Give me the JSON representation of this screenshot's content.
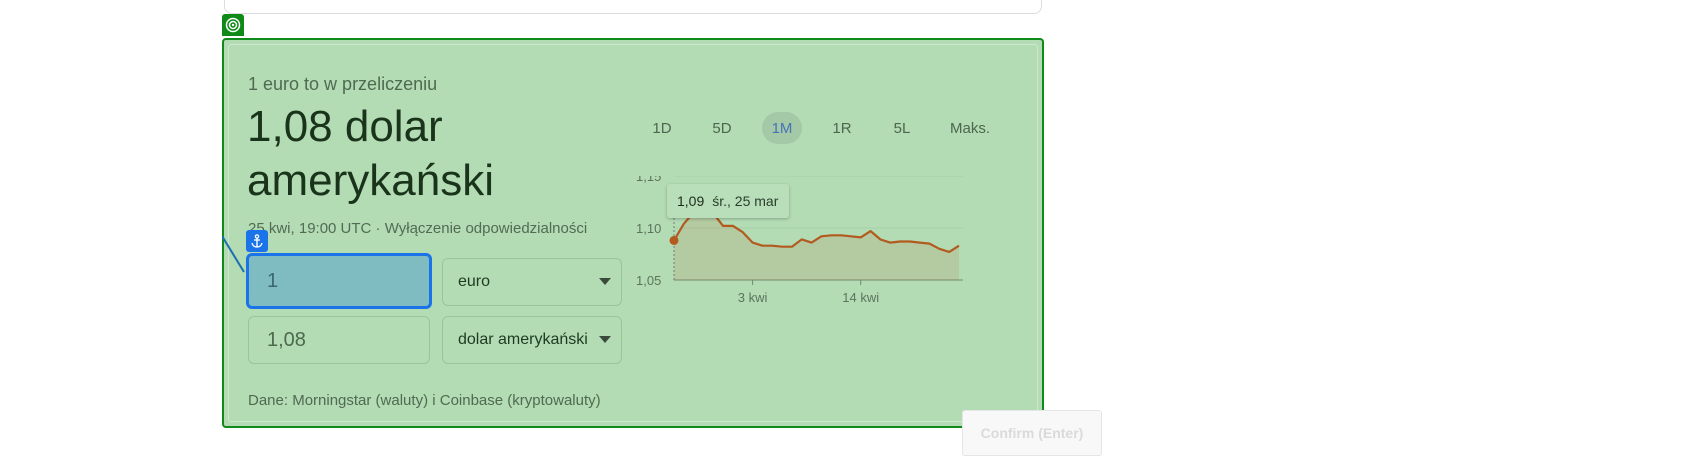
{
  "converter": {
    "subtitle": "1 euro to w przeliczeniu",
    "headline": "1,08 dolar amerykański",
    "meta": "25 kwi, 19:00 UTC · Wyłączenie odpowiedzialności",
    "from_amount": "1",
    "to_amount": "1,08",
    "from_currency": "euro",
    "to_currency": "dolar amerykański",
    "source": "Dane: Morningstar (waluty) i Coinbase (kryptowaluty)"
  },
  "range_tabs": [
    {
      "label": "1D",
      "active": false
    },
    {
      "label": "5D",
      "active": false
    },
    {
      "label": "1M",
      "active": true
    },
    {
      "label": "1R",
      "active": false
    },
    {
      "label": "5L",
      "active": false
    },
    {
      "label": "Maks.",
      "active": false
    }
  ],
  "tooltip": {
    "value": "1,09",
    "date": "śr., 25 mar"
  },
  "confirm_button": {
    "label": "Confirm (Enter)"
  },
  "icons": {
    "target": "target-icon",
    "anchor": "anchor-icon"
  },
  "colors": {
    "line": "#b35a1f",
    "overlay": "#b3dcb4",
    "focus": "#1a73e8"
  },
  "chart_data": {
    "type": "area",
    "y_tick_labels": [
      "1,15",
      "1,10",
      "1,05"
    ],
    "y_ticks": [
      1.15,
      1.1,
      1.05
    ],
    "ylim": [
      1.05,
      1.15
    ],
    "x_tick_labels": [
      "3 kwi",
      "14 kwi"
    ],
    "x_tick_index": [
      8,
      19
    ],
    "series": [
      {
        "values": [
          1.088,
          1.104,
          1.115,
          1.116,
          1.114,
          1.102,
          1.102,
          1.096,
          1.086,
          1.083,
          1.083,
          1.082,
          1.082,
          1.089,
          1.086,
          1.092,
          1.093,
          1.093,
          1.092,
          1.091,
          1.097,
          1.089,
          1.086,
          1.087,
          1.087,
          1.086,
          1.085,
          1.08,
          1.077,
          1.083
        ]
      }
    ]
  }
}
